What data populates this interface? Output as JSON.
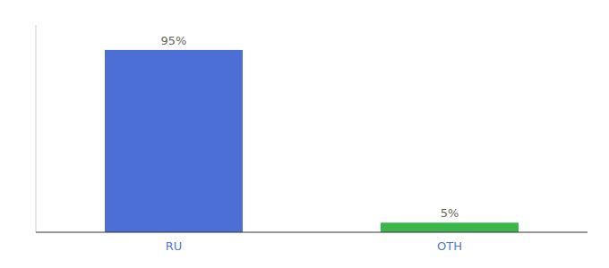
{
  "chart_data": {
    "type": "bar",
    "categories": [
      "RU",
      "OTH"
    ],
    "values": [
      95,
      5
    ],
    "value_labels": [
      "95%",
      "5%"
    ],
    "colors": [
      "#4b6fd4",
      "#3cb54a"
    ],
    "ylim": [
      0,
      108
    ],
    "data_labels": true,
    "tick_labels": "x"
  }
}
